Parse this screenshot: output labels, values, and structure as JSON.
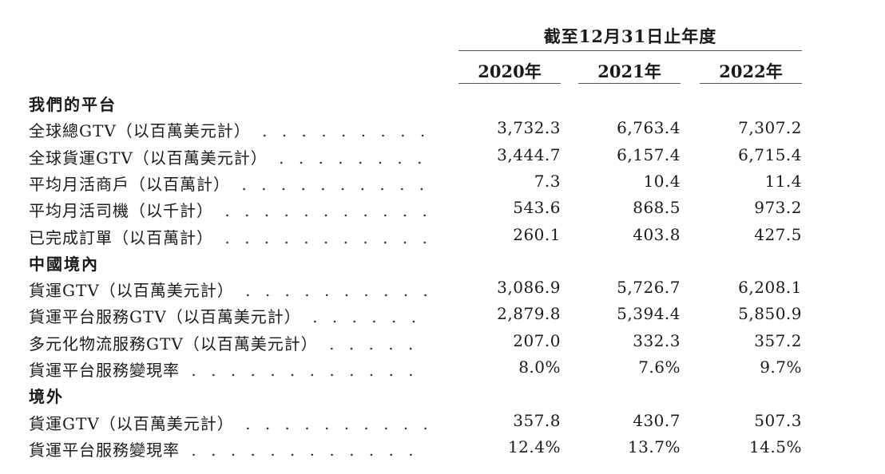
{
  "header": {
    "period": "截至12月31日止年度",
    "years": [
      "2020年",
      "2021年",
      "2022年"
    ]
  },
  "sections": [
    {
      "title": "我們的平台",
      "rows": [
        {
          "label": "全球總GTV（以百萬美元計）",
          "values": [
            "3,732.3",
            "6,763.4",
            "7,307.2"
          ]
        },
        {
          "label": "全球貨運GTV（以百萬美元計）",
          "values": [
            "3,444.7",
            "6,157.4",
            "6,715.4"
          ]
        },
        {
          "label": "平均月活商戶（以百萬計）",
          "values": [
            "7.3",
            "10.4",
            "11.4"
          ]
        },
        {
          "label": "平均月活司機（以千計）",
          "values": [
            "543.6",
            "868.5",
            "973.2"
          ]
        },
        {
          "label": "已完成訂單（以百萬計）",
          "values": [
            "260.1",
            "403.8",
            "427.5"
          ]
        }
      ]
    },
    {
      "title": "中國境內",
      "rows": [
        {
          "label": "貨運GTV（以百萬美元計）",
          "values": [
            "3,086.9",
            "5,726.7",
            "6,208.1"
          ]
        },
        {
          "label": "貨運平台服務GTV（以百萬美元計）",
          "values": [
            "2,879.8",
            "5,394.4",
            "5,850.9"
          ]
        },
        {
          "label": "多元化物流服務GTV（以百萬美元計）",
          "values": [
            "207.0",
            "332.3",
            "357.2"
          ]
        },
        {
          "label": "貨運平台服務變現率",
          "values": [
            "8.0%",
            "7.6%",
            "9.7%"
          ]
        }
      ]
    },
    {
      "title": "境外",
      "rows": [
        {
          "label": "貨運GTV（以百萬美元計）",
          "values": [
            "357.8",
            "430.7",
            "507.3"
          ]
        },
        {
          "label": "貨運平台服務變現率",
          "values": [
            "12.4%",
            "13.7%",
            "14.5%"
          ]
        }
      ]
    }
  ]
}
